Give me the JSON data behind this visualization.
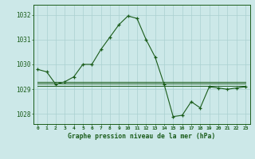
{
  "title": "Graphe pression niveau de la mer (hPa)",
  "bg_color": "#cce8e8",
  "grid_color": "#aad0d0",
  "line_color": "#1a5c1a",
  "x_ticks": [
    0,
    1,
    2,
    3,
    4,
    5,
    6,
    7,
    8,
    9,
    10,
    11,
    12,
    13,
    14,
    15,
    16,
    17,
    18,
    19,
    20,
    21,
    22,
    23
  ],
  "ylim": [
    1027.6,
    1032.4
  ],
  "yticks": [
    1028,
    1029,
    1030,
    1031,
    1032
  ],
  "series_main": [
    1029.8,
    1029.7,
    1029.2,
    1029.3,
    1029.5,
    1030.0,
    1030.0,
    1030.6,
    1031.1,
    1031.6,
    1031.95,
    1031.85,
    1031.0,
    1030.3,
    1029.2,
    1027.9,
    1027.95,
    1028.5,
    1028.25,
    1029.1,
    1029.05,
    1029.0,
    1029.05,
    1029.1
  ],
  "series_flat1": [
    1029.15,
    1029.15,
    1029.15,
    1029.15,
    1029.15,
    1029.15,
    1029.15,
    1029.15,
    1029.15,
    1029.15,
    1029.15,
    1029.15,
    1029.15,
    1029.15,
    1029.15,
    1029.15,
    1029.15,
    1029.15,
    1029.15,
    1029.15,
    1029.15,
    1029.15,
    1029.15,
    1029.15
  ],
  "series_flat2": [
    1029.22,
    1029.22,
    1029.22,
    1029.22,
    1029.22,
    1029.22,
    1029.22,
    1029.22,
    1029.22,
    1029.22,
    1029.22,
    1029.22,
    1029.22,
    1029.22,
    1029.22,
    1029.22,
    1029.22,
    1029.22,
    1029.22,
    1029.22,
    1029.22,
    1029.22,
    1029.22,
    1029.22
  ],
  "series_flat3": [
    1029.3,
    1029.3,
    1029.3,
    1029.3,
    1029.3,
    1029.3,
    1029.3,
    1029.3,
    1029.3,
    1029.3,
    1029.3,
    1029.3,
    1029.3,
    1029.3,
    1029.3,
    1029.3,
    1029.3,
    1029.3,
    1029.3,
    1029.3,
    1029.3,
    1029.3,
    1029.3,
    1029.3
  ]
}
